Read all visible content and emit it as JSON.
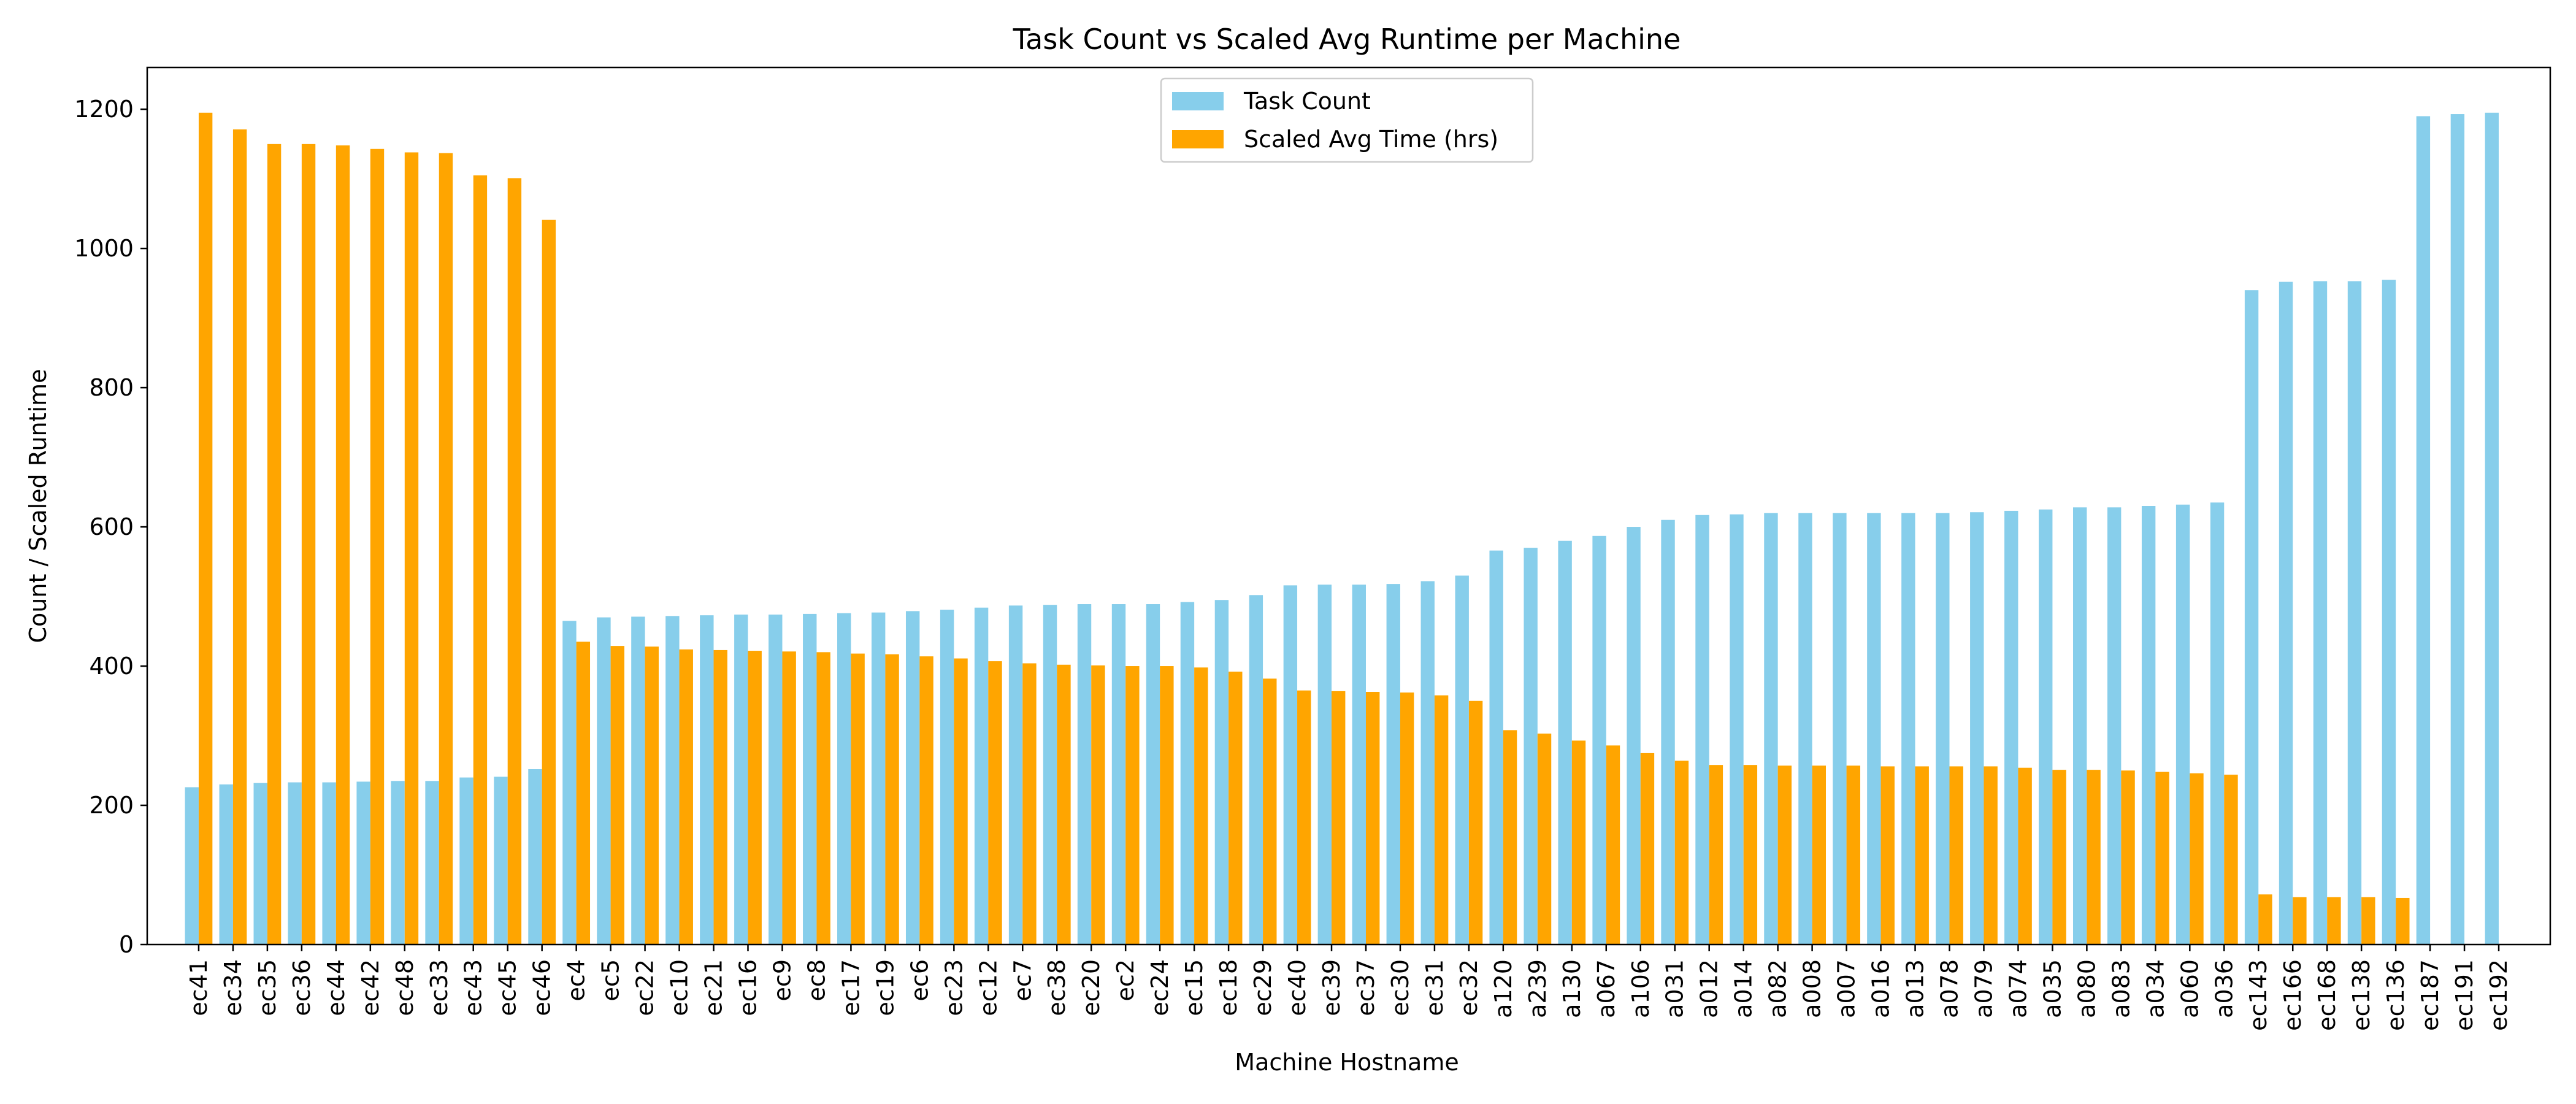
{
  "chart_data": {
    "type": "bar",
    "title": "Task Count vs Scaled Avg Runtime per Machine",
    "xlabel": "Machine Hostname",
    "ylabel": "Count / Scaled Runtime",
    "ylim": [
      0,
      1260
    ],
    "yticks": [
      0,
      200,
      400,
      600,
      800,
      1000,
      1200
    ],
    "grid": false,
    "legend_position": "top-center",
    "categories": [
      "ec41",
      "ec34",
      "ec35",
      "ec36",
      "ec44",
      "ec42",
      "ec48",
      "ec33",
      "ec43",
      "ec45",
      "ec46",
      "ec4",
      "ec5",
      "ec22",
      "ec10",
      "ec21",
      "ec16",
      "ec9",
      "ec8",
      "ec17",
      "ec19",
      "ec6",
      "ec23",
      "ec12",
      "ec7",
      "ec38",
      "ec20",
      "ec2",
      "ec24",
      "ec15",
      "ec18",
      "ec29",
      "ec40",
      "ec39",
      "ec37",
      "ec30",
      "ec31",
      "ec32",
      "a120",
      "a239",
      "a130",
      "a067",
      "a106",
      "a031",
      "a012",
      "a014",
      "a082",
      "a008",
      "a007",
      "a016",
      "a013",
      "a078",
      "a079",
      "a074",
      "a035",
      "a080",
      "a083",
      "a034",
      "a060",
      "a036",
      "ec143",
      "ec166",
      "ec168",
      "ec138",
      "ec136",
      "ec187",
      "ec191",
      "ec192"
    ],
    "series": [
      {
        "name": "Task Count",
        "color": "#87ceeb",
        "values": [
          226,
          230,
          232,
          233,
          233,
          234,
          235,
          235,
          240,
          241,
          252,
          465,
          470,
          471,
          472,
          473,
          474,
          474,
          475,
          476,
          477,
          479,
          481,
          484,
          487,
          488,
          489,
          489,
          489,
          492,
          495,
          502,
          516,
          517,
          517,
          518,
          522,
          530,
          566,
          570,
          580,
          587,
          600,
          610,
          617,
          618,
          620,
          620,
          620,
          620,
          620,
          620,
          621,
          623,
          625,
          628,
          628,
          630,
          632,
          635,
          940,
          952,
          953,
          953,
          955,
          1190,
          1193,
          1195
        ]
      },
      {
        "name": "Scaled Avg Time (hrs)",
        "color": "#ffa500",
        "values": [
          1195,
          1171,
          1150,
          1150,
          1148,
          1143,
          1138,
          1137,
          1105,
          1101,
          1041,
          435,
          429,
          428,
          424,
          423,
          422,
          421,
          420,
          418,
          417,
          414,
          411,
          407,
          404,
          402,
          401,
          400,
          400,
          398,
          392,
          382,
          365,
          364,
          363,
          362,
          358,
          350,
          308,
          303,
          293,
          286,
          275,
          264,
          258,
          258,
          257,
          257,
          257,
          256,
          256,
          256,
          256,
          254,
          251,
          251,
          250,
          248,
          246,
          244,
          72,
          68,
          68,
          68,
          67,
          0,
          0,
          0
        ]
      }
    ]
  }
}
